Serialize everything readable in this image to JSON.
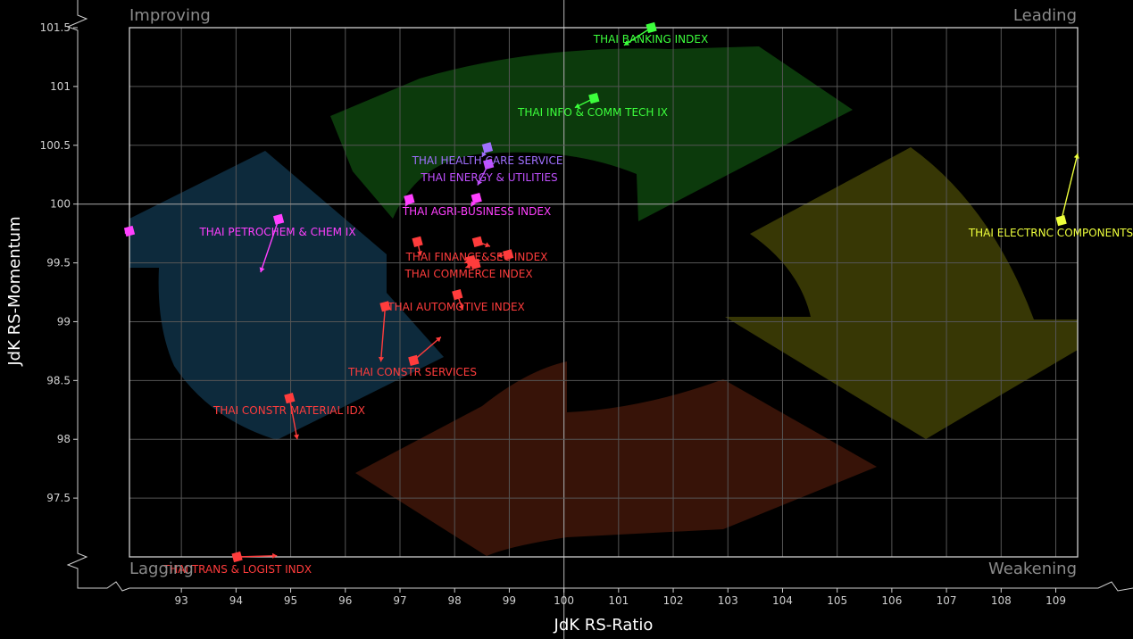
{
  "chart_data": {
    "type": "scatter",
    "subtype": "relative-rotation-graph",
    "xlabel": "JdK RS-Ratio",
    "ylabel": "JdK RS-Momentum",
    "xlim": [
      92.05,
      109.4
    ],
    "ylim": [
      97,
      101.5
    ],
    "x_ticks": [
      "93",
      "94",
      "95",
      "96",
      "97",
      "98",
      "99",
      "100",
      "101",
      "102",
      "103",
      "104",
      "105",
      "106",
      "107",
      "108",
      "109"
    ],
    "y_ticks": [
      "97.5",
      "98",
      "98.5",
      "99",
      "99.5",
      "100",
      "100.5",
      "101",
      "101.5"
    ],
    "grid": true,
    "center": {
      "x": 100,
      "y": 100
    },
    "quadrants": {
      "top_left": "Improving",
      "top_right": "Leading",
      "bottom_left": "Lagging",
      "bottom_right": "Weakening"
    },
    "quadrant_colors": {
      "leading": "#0d3d0d",
      "weakening": "#3a3a05",
      "lagging": "#3a1408",
      "improving": "#0e2c3f"
    },
    "series": [
      {
        "name": "THAI BANKING INDEX",
        "color": "#3cff3c",
        "head": {
          "x": 101.6,
          "y": 101.5
        },
        "tail": {
          "x": 101.1,
          "y": 101.35
        }
      },
      {
        "name": "THAI INFO & COMM TECH IX",
        "color": "#3cff3c",
        "head": {
          "x": 100.55,
          "y": 100.9
        },
        "tail": {
          "x": 100.2,
          "y": 100.82
        }
      },
      {
        "name": "THAI HEALTH CARE SERVICE",
        "color": "#a070ff",
        "head": {
          "x": 98.6,
          "y": 100.48
        },
        "tail": {
          "x": 98.5,
          "y": 100.4
        }
      },
      {
        "name": "THAI ENERGY & UTILITIES",
        "color": "#c050ff",
        "head": {
          "x": 98.62,
          "y": 100.34
        },
        "tail": {
          "x": 98.42,
          "y": 100.16
        }
      },
      {
        "name": "THAI AGRI-BUSINESS INDEX",
        "color": "#ff40ff",
        "head": {
          "x": 98.4,
          "y": 100.05
        },
        "tail": {
          "x": 98.3,
          "y": 99.98
        }
      },
      {
        "name": "",
        "color": "#ff40ff",
        "head": {
          "x": 97.17,
          "y": 100.04
        },
        "tail": {
          "x": 97.1,
          "y": 99.98
        }
      },
      {
        "name": "",
        "color": "#ff40ff",
        "head": {
          "x": 92.05,
          "y": 99.77
        },
        "tail": {
          "x": 92.05,
          "y": 99.77
        }
      },
      {
        "name": "THAI PETROCHEM & CHEM IX",
        "color": "#ff40ff",
        "head": {
          "x": 94.78,
          "y": 99.87
        },
        "tail": {
          "x": 94.45,
          "y": 99.42
        }
      },
      {
        "name": "THAI ELECTRNC COMPONENTS",
        "color": "#eeff3c",
        "head": {
          "x": 109.1,
          "y": 99.86
        },
        "tail": {
          "x": 109.4,
          "y": 100.43
        }
      },
      {
        "name": "",
        "color": "#ff3c3c",
        "head": {
          "x": 97.32,
          "y": 99.68
        },
        "tail": {
          "x": 97.38,
          "y": 99.56
        }
      },
      {
        "name": "THAI FINANCE&SEC INDEX",
        "color": "#ff3c3c",
        "head": {
          "x": 98.42,
          "y": 99.68
        },
        "tail": {
          "x": 98.65,
          "y": 99.64
        }
      },
      {
        "name": "",
        "color": "#ff3c3c",
        "head": {
          "x": 98.98,
          "y": 99.57
        },
        "tail": {
          "x": 98.78,
          "y": 99.56
        }
      },
      {
        "name": "THAI COMMERCE INDEX",
        "color": "#ff3c3c",
        "head": {
          "x": 98.3,
          "y": 99.52
        },
        "tail": {
          "x": 98.18,
          "y": 99.5
        }
      },
      {
        "name": "",
        "color": "#ff3c3c",
        "head": {
          "x": 98.38,
          "y": 99.49
        },
        "tail": {
          "x": 98.2,
          "y": 99.46
        }
      },
      {
        "name": "THAI AUTOMOTIVE INDEX",
        "color": "#ff3c3c",
        "head": {
          "x": 98.05,
          "y": 99.23
        },
        "tail": {
          "x": 98.15,
          "y": 99.1
        }
      },
      {
        "name": "",
        "color": "#ff3c3c",
        "head": {
          "x": 96.73,
          "y": 99.13
        },
        "tail": {
          "x": 96.65,
          "y": 98.66
        }
      },
      {
        "name": "THAI CONSTR SERVICES",
        "color": "#ff3c3c",
        "head": {
          "x": 97.25,
          "y": 98.67
        },
        "tail": {
          "x": 97.75,
          "y": 98.87
        }
      },
      {
        "name": "THAI CONSTR MATERIAL IDX",
        "color": "#ff3c3c",
        "head": {
          "x": 94.98,
          "y": 98.35
        },
        "tail": {
          "x": 95.12,
          "y": 98.0
        }
      },
      {
        "name": "THAI TRANS & LOGIST INDX",
        "color": "#ff3c3c",
        "head": {
          "x": 94.02,
          "y": 97.0
        },
        "tail": {
          "x": 94.75,
          "y": 97.01
        }
      }
    ]
  }
}
